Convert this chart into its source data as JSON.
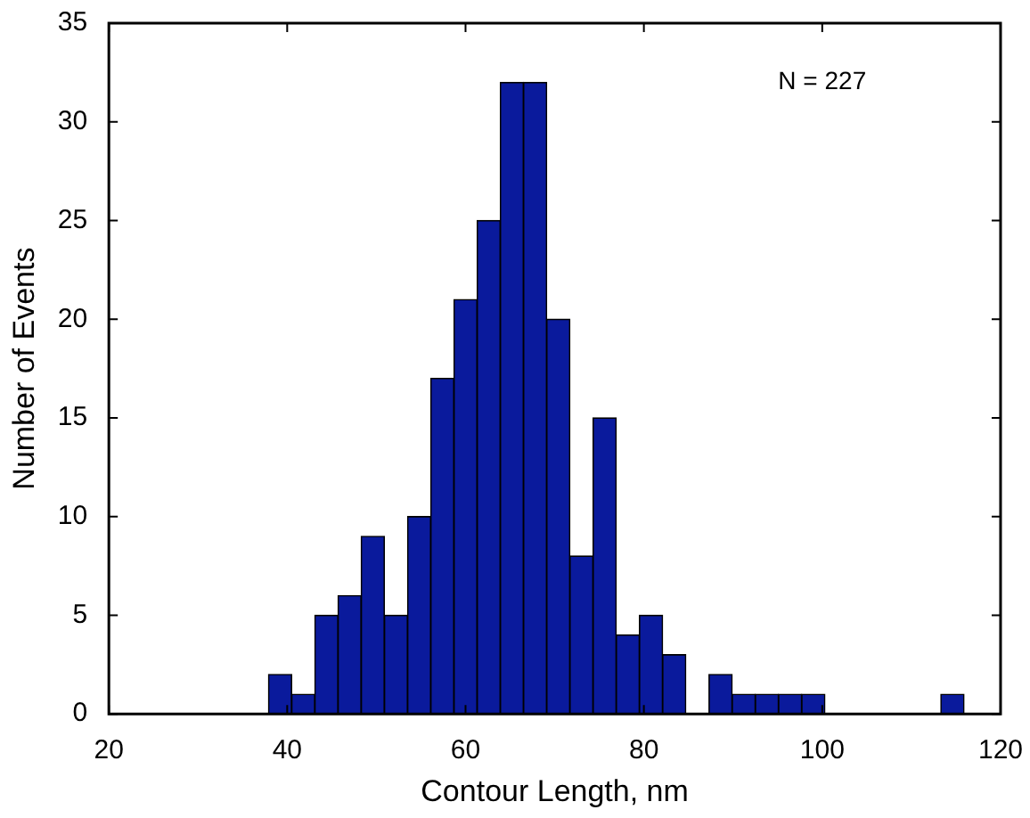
{
  "chart_data": {
    "type": "histogram",
    "xlabel": "Contour Length, nm",
    "ylabel": "Number of Events",
    "annotations": [
      "N = 227"
    ],
    "bins": [
      37.9,
      40.5,
      43.1,
      45.7,
      48.3,
      50.9,
      53.5,
      56.1,
      58.7,
      61.3,
      63.9,
      66.5,
      69.1,
      71.7,
      74.3,
      76.9,
      79.5,
      82.1,
      84.7,
      87.3,
      89.9,
      92.5,
      95.1,
      97.7,
      100.3,
      102.9,
      105.5,
      108.1,
      110.7,
      113.3,
      115.9
    ],
    "values": [
      2,
      1,
      5,
      6,
      9,
      5,
      10,
      17,
      21,
      25,
      32,
      32,
      20,
      8,
      15,
      4,
      5,
      3,
      0,
      2,
      1,
      1,
      1,
      1,
      0,
      0,
      0,
      0,
      0,
      1
    ],
    "color": "#0a1a9c",
    "xlim": [
      20,
      120
    ],
    "xticks": [
      20,
      40,
      60,
      80,
      100,
      120
    ],
    "ylim": [
      0,
      35
    ],
    "yticks": [
      0,
      5,
      10,
      15,
      20,
      25,
      30,
      35
    ],
    "grid": false,
    "legend": false
  }
}
